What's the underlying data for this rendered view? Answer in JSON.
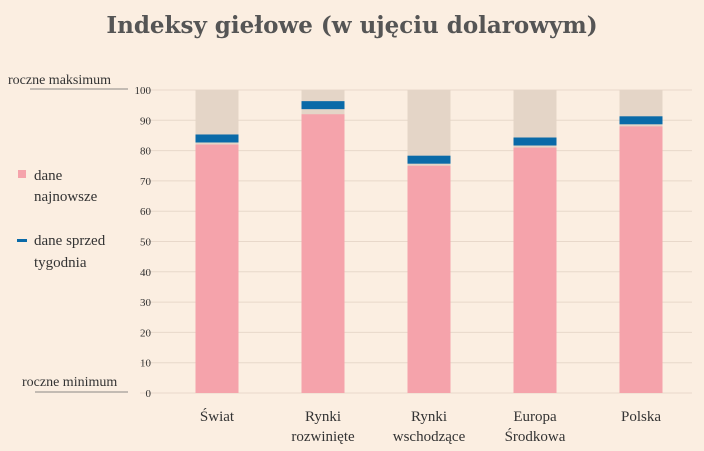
{
  "chart_data": {
    "type": "bar",
    "title": "Indeksy giełowe (w ujęciu dolarowym)",
    "categories": [
      [
        "Świat"
      ],
      [
        "Rynki",
        "rozwinięte"
      ],
      [
        "Rynki",
        "wschodzące"
      ],
      [
        "Europa",
        "Środkowa"
      ],
      [
        "Polska"
      ]
    ],
    "series": [
      {
        "name": "dane najnowsze",
        "values": [
          82,
          92,
          75,
          81,
          88
        ]
      },
      {
        "name": "dane sprzed tygodnia",
        "values": [
          84,
          95,
          77,
          83,
          90
        ]
      }
    ],
    "ylim": [
      0,
      100
    ],
    "yticks": [
      0,
      10,
      20,
      30,
      40,
      50,
      60,
      70,
      80,
      90,
      100
    ],
    "top_label": "roczne maksimum",
    "bottom_label": "roczne minimum",
    "legend": {
      "latest": [
        "dane",
        "najnowsze"
      ],
      "week_ago": [
        "dane sprzed",
        "tygodnia"
      ]
    },
    "colors": {
      "latest": "#f5a3ab",
      "week_ago": "#0a6aa8",
      "range_background": "#e4d5c7",
      "gridline": "#e8d8ca"
    },
    "grid": true,
    "legend_placement": "left"
  }
}
